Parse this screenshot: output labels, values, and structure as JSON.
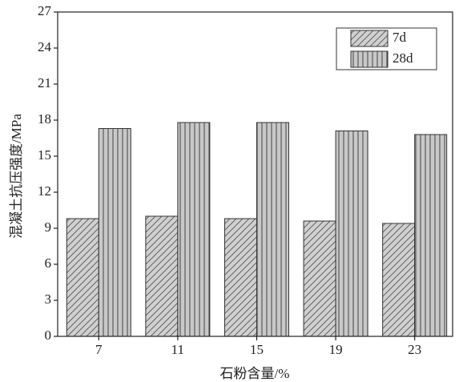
{
  "chart_data": {
    "type": "bar",
    "x_label": "石粉含量/%",
    "y_label": "混凝土抗压强度/MPa",
    "categories": [
      "7",
      "11",
      "15",
      "19",
      "23"
    ],
    "series": [
      {
        "name": "7d",
        "color": "#d0d0d0",
        "values": [
          9.8,
          10.0,
          9.8,
          9.6,
          9.4
        ]
      },
      {
        "name": "28d",
        "color": "#c8c8c8",
        "values": [
          17.3,
          17.8,
          17.8,
          17.1,
          16.8
        ]
      }
    ],
    "ylim": [
      0,
      27
    ],
    "yticks": [
      0,
      3,
      6,
      9,
      12,
      15,
      18,
      21,
      24,
      27
    ],
    "legend": "upper right"
  }
}
